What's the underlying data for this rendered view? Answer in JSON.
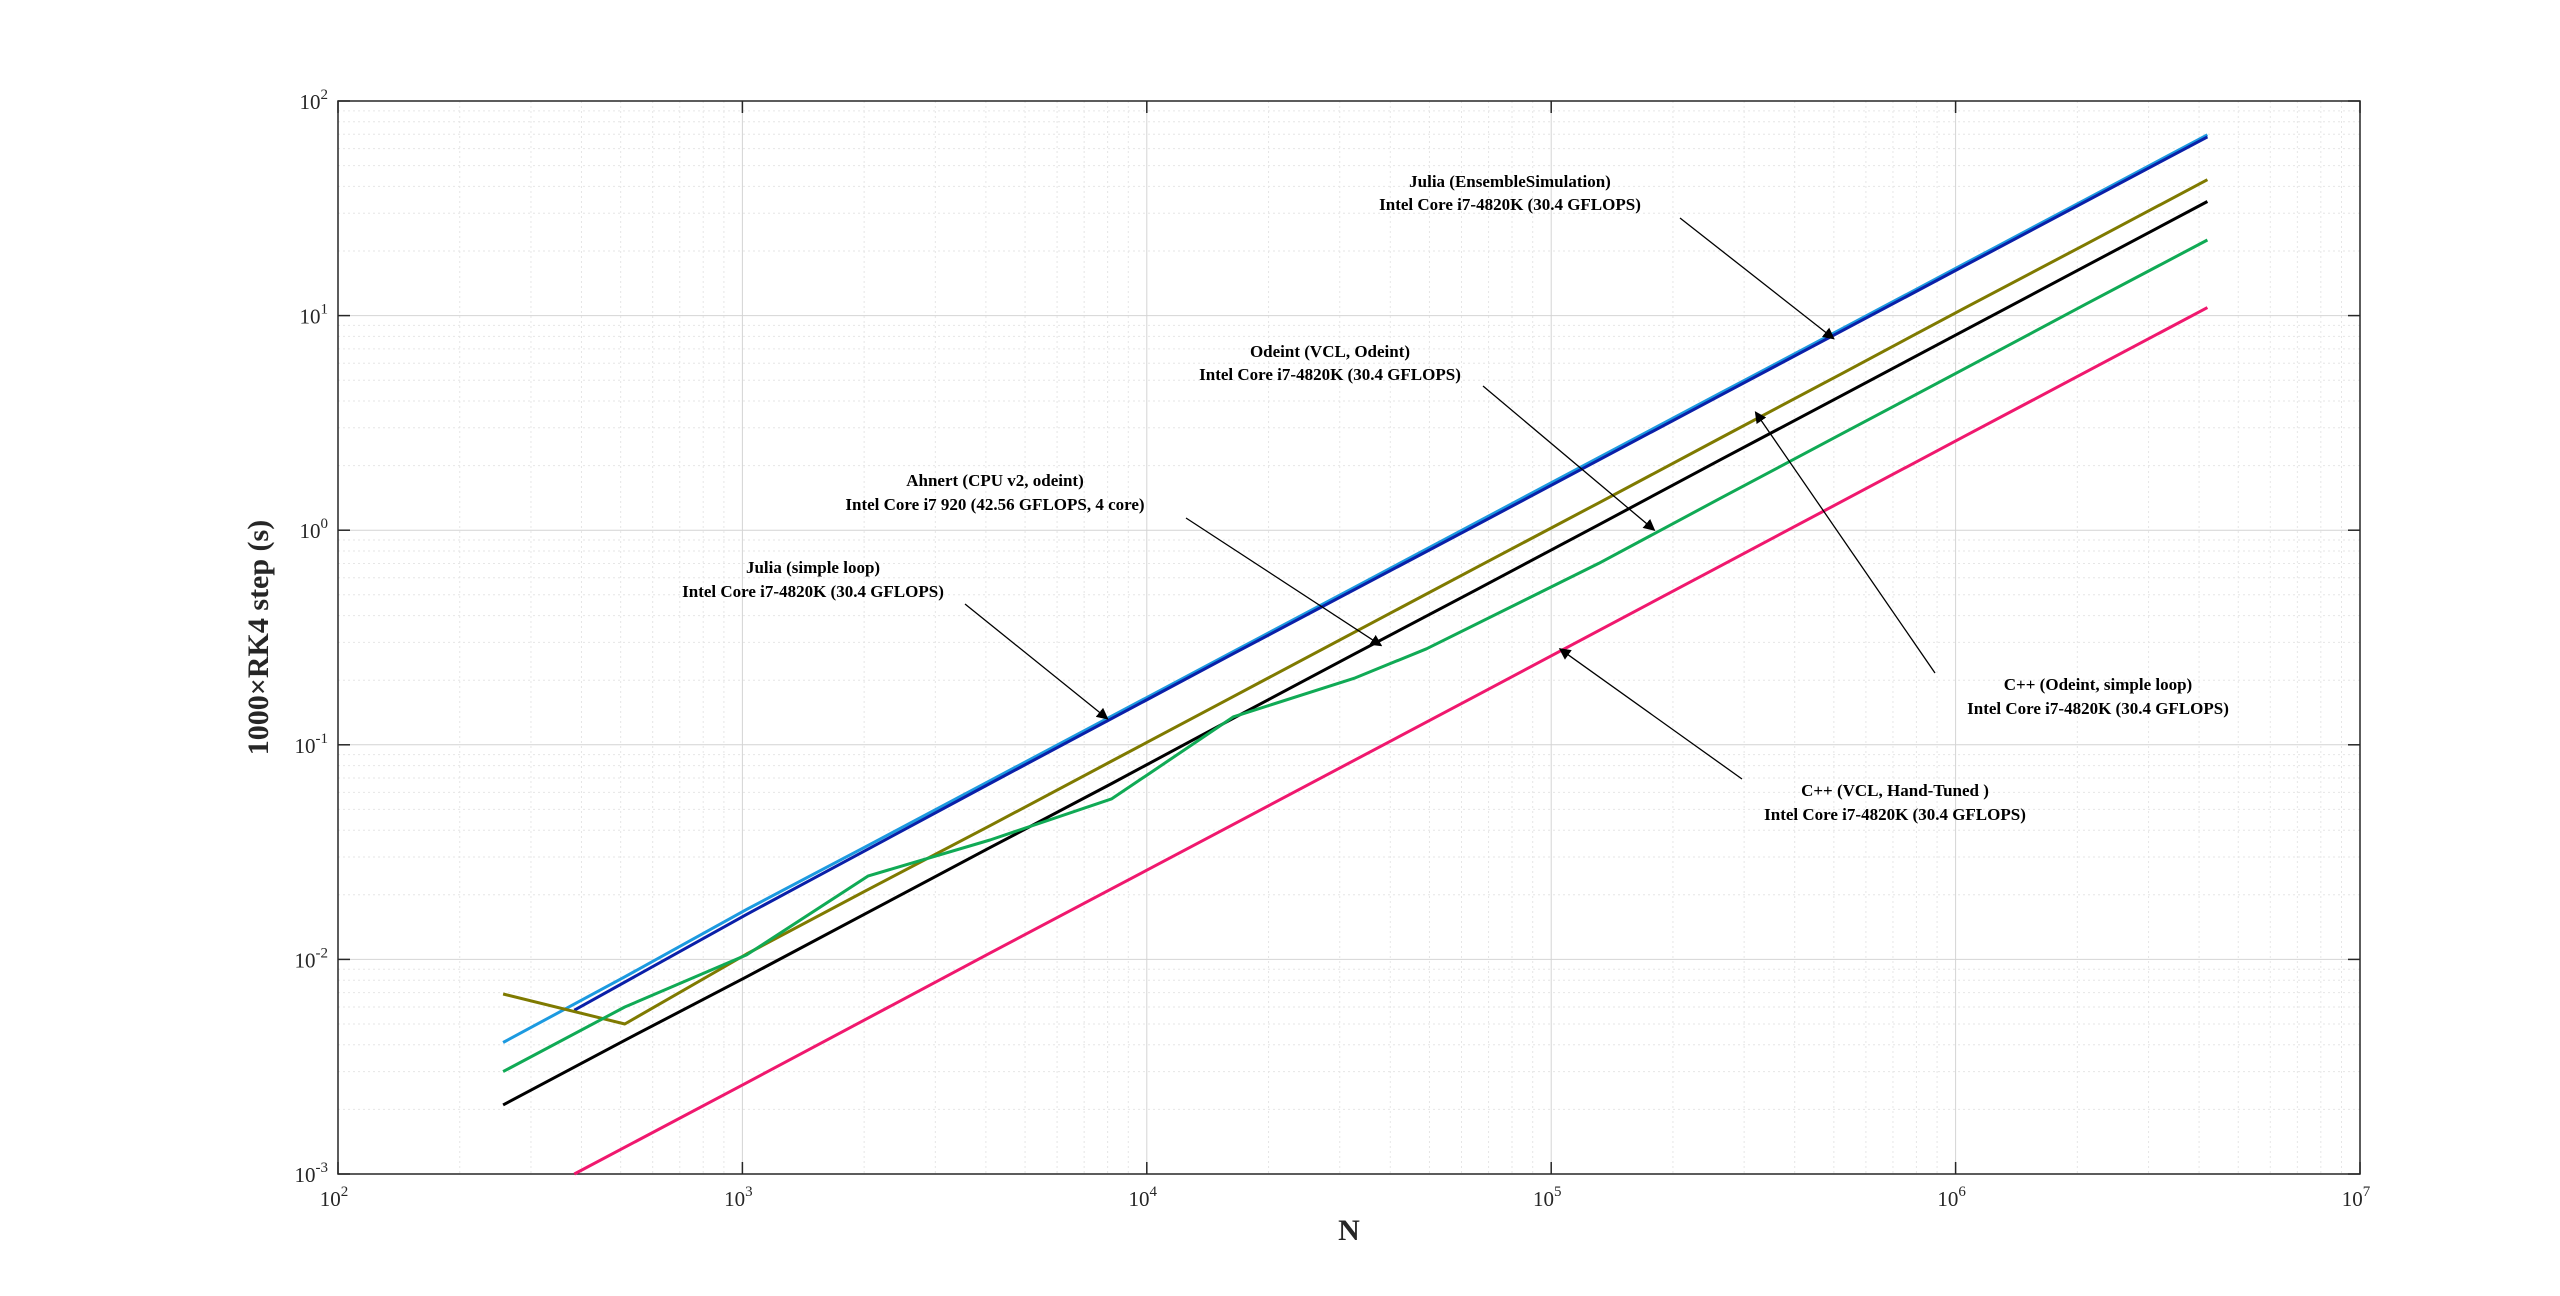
{
  "chart_data": {
    "type": "line",
    "xlabel": "N",
    "ylabel": "1000×RK4 step (s)",
    "xscale": "log",
    "yscale": "log",
    "xlim": [
      100,
      10000000
    ],
    "ylim": [
      0.001,
      100
    ],
    "grid": true,
    "minor_grid": true,
    "x_ticks": [
      {
        "value": 100,
        "base": "10",
        "exp": "2"
      },
      {
        "value": 1000,
        "base": "10",
        "exp": "3"
      },
      {
        "value": 10000,
        "base": "10",
        "exp": "4"
      },
      {
        "value": 100000,
        "base": "10",
        "exp": "5"
      },
      {
        "value": 1000000,
        "base": "10",
        "exp": "6"
      },
      {
        "value": 10000000,
        "base": "10",
        "exp": "7"
      }
    ],
    "y_ticks": [
      {
        "value": 0.001,
        "base": "10",
        "exp": "-3"
      },
      {
        "value": 0.01,
        "base": "10",
        "exp": "-2"
      },
      {
        "value": 0.1,
        "base": "10",
        "exp": "-1"
      },
      {
        "value": 1,
        "base": "10",
        "exp": "0"
      },
      {
        "value": 10,
        "base": "10",
        "exp": "1"
      },
      {
        "value": 100,
        "base": "10",
        "exp": "2"
      }
    ],
    "series": [
      {
        "color": "#1c9ae0",
        "x": [
          256,
          512,
          1024,
          2048,
          4096,
          8192,
          16384,
          32768,
          65536,
          131072,
          262144,
          524288,
          1048576,
          2097152,
          4194304
        ],
        "y": [
          0.0041,
          0.0083,
          0.0171,
          0.034,
          0.068,
          0.136,
          0.272,
          0.544,
          1.09,
          2.18,
          4.36,
          8.7,
          17.4,
          34.8,
          69.6
        ]
      },
      {
        "color": "#0a1fa8",
        "x": [
          384,
          1024,
          4096,
          16384,
          65536,
          262144,
          1048576,
          4194304
        ],
        "y": [
          0.0058,
          0.0162,
          0.066,
          0.266,
          1.06,
          4.25,
          17.0,
          68.0
        ]
      },
      {
        "color": "#7f7a00",
        "x": [
          256,
          512,
          1024,
          2048,
          4096,
          8192,
          16384,
          32768,
          65536,
          131072,
          262144,
          524288,
          1048576,
          2097152,
          4194304
        ],
        "y": [
          0.0069,
          0.005,
          0.0106,
          0.0212,
          0.042,
          0.084,
          0.168,
          0.336,
          0.672,
          1.34,
          2.69,
          5.38,
          10.8,
          21.5,
          43.0
        ]
      },
      {
        "color": "#000000",
        "x": [
          256,
          512,
          1024,
          2048,
          4096,
          8192,
          16384,
          32768,
          65536,
          131072,
          262144,
          524288,
          1048576,
          2097152,
          4194304
        ],
        "y": [
          0.0021,
          0.0042,
          0.0083,
          0.0166,
          0.0332,
          0.066,
          0.133,
          0.266,
          0.53,
          1.06,
          2.13,
          4.25,
          8.5,
          17.0,
          34.0
        ]
      },
      {
        "color": "#10aa55",
        "x": [
          256,
          512,
          1024,
          2048,
          4096,
          8192,
          16384,
          32768,
          49152,
          131072,
          262144,
          524288,
          1048576,
          2097152,
          4194304
        ],
        "y": [
          0.003,
          0.006,
          0.0105,
          0.0245,
          0.036,
          0.056,
          0.135,
          0.205,
          0.28,
          0.7,
          1.41,
          2.82,
          5.63,
          11.3,
          22.5
        ]
      },
      {
        "color": "#f0186e",
        "x": [
          384,
          1024,
          4096,
          16384,
          65536,
          262144,
          1048576,
          4194304
        ],
        "y": [
          0.001,
          0.00266,
          0.0107,
          0.0426,
          0.17,
          0.682,
          2.73,
          10.9
        ]
      }
    ],
    "annotations": [
      {
        "line1": "Julia (EnsembleSimulation)",
        "line2": "Intel Core i7-4820K (30.4 GFLOPS)",
        "target": [
          500000,
          7.8
        ]
      },
      {
        "line1": "Odeint (VCL, Odeint)",
        "line2": "Intel Core i7-4820K (30.4 GFLOPS)",
        "target": [
          180000,
          1.0
        ]
      },
      {
        "line1": "Ahnert (CPU v2, odeint)",
        "line2": "Intel Core i7 920 (42.56 GFLOPS, 4 core)",
        "target": [
          38000,
          0.29
        ]
      },
      {
        "line1": "Julia (simple loop)",
        "line2": "Intel Core i7-4820K (30.4 GFLOPS)",
        "target": [
          8000,
          0.132
        ]
      },
      {
        "line1": "C++ (Odeint, simple loop)",
        "line2": "Intel Core i7-4820K (30.4 GFLOPS)",
        "target": [
          320000,
          3.55
        ]
      },
      {
        "line1": "C++ (VCL, Hand-Tuned )",
        "line2": "Intel Core  i7-4820K (30.4 GFLOPS)",
        "target": [
          105000,
          0.28
        ]
      }
    ]
  }
}
